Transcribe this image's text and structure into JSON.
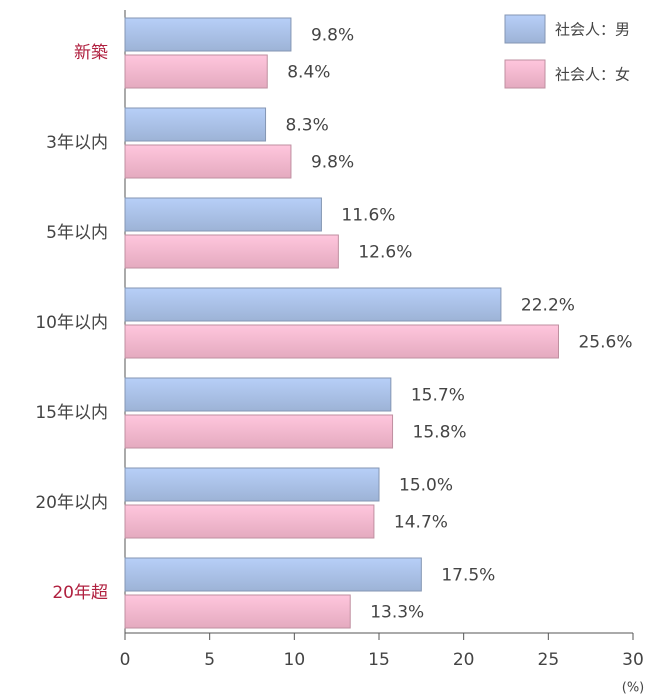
{
  "chart_data": {
    "type": "bar",
    "orientation": "horizontal",
    "categories": [
      "新築",
      "3年以内",
      "5年以内",
      "10年以内",
      "15年以内",
      "20年以内",
      "20年超"
    ],
    "category_label_colors": [
      "#b0203f",
      "#444444",
      "#444444",
      "#444444",
      "#444444",
      "#444444",
      "#b0203f"
    ],
    "series": [
      {
        "name": "社会人：男",
        "color": "#a9c0e6",
        "values": [
          9.8,
          8.3,
          11.6,
          22.2,
          15.7,
          15.0,
          17.5
        ],
        "value_labels": [
          "9.8%",
          "8.3%",
          "11.6%",
          "22.2%",
          "15.7%",
          "15.0%",
          "17.5%"
        ]
      },
      {
        "name": "社会人：女",
        "color": "#f5b7cd",
        "values": [
          8.4,
          9.8,
          12.6,
          25.6,
          15.8,
          14.7,
          13.3
        ],
        "value_labels": [
          "8.4%",
          "9.8%",
          "12.6%",
          "25.6%",
          "15.8%",
          "14.7%",
          "13.3%"
        ]
      }
    ],
    "x_label": "(%)",
    "xlim": [
      0,
      30
    ],
    "xticks": [
      0,
      5,
      10,
      15,
      20,
      25,
      30
    ],
    "legend": "upper right"
  }
}
